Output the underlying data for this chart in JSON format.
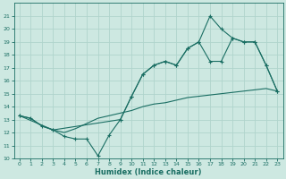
{
  "xlabel": "Humidex (Indice chaleur)",
  "bg_color": "#cde8e1",
  "grid_color": "#b0d4cc",
  "line_color": "#1a6e63",
  "xlim": [
    -0.5,
    23.5
  ],
  "ylim": [
    10,
    22
  ],
  "yticks": [
    10,
    11,
    12,
    13,
    14,
    15,
    16,
    17,
    18,
    19,
    20,
    21
  ],
  "xticks": [
    0,
    1,
    2,
    3,
    4,
    5,
    6,
    7,
    8,
    9,
    10,
    11,
    12,
    13,
    14,
    15,
    16,
    17,
    18,
    19,
    20,
    21,
    22,
    23
  ],
  "line1_x": [
    0,
    1,
    2,
    3,
    4,
    5,
    6,
    7,
    8,
    9,
    10,
    11,
    12,
    13,
    14,
    15,
    16,
    17,
    18,
    19,
    20,
    21,
    22,
    23
  ],
  "line1_y": [
    13.3,
    13.1,
    12.5,
    12.2,
    11.7,
    11.5,
    11.5,
    10.2,
    11.8,
    13.0,
    14.8,
    16.5,
    17.2,
    17.5,
    17.2,
    18.5,
    19.0,
    17.5,
    17.5,
    19.3,
    19.0,
    19.0,
    17.2,
    15.2
  ],
  "line2_x": [
    0,
    1,
    2,
    3,
    4,
    5,
    6,
    7,
    8,
    9,
    10,
    11,
    12,
    13,
    14,
    15,
    16,
    17,
    18,
    19,
    20,
    21,
    22,
    23
  ],
  "line2_y": [
    13.3,
    13.1,
    12.5,
    12.2,
    12.0,
    12.3,
    12.7,
    13.1,
    13.3,
    13.5,
    13.7,
    14.0,
    14.2,
    14.3,
    14.5,
    14.7,
    14.8,
    14.9,
    15.0,
    15.1,
    15.2,
    15.3,
    15.4,
    15.2
  ],
  "line3_x": [
    0,
    3,
    9,
    10,
    11,
    12,
    13,
    14,
    15,
    16,
    17,
    18,
    19,
    20,
    21,
    22,
    23
  ],
  "line3_y": [
    13.3,
    12.2,
    13.0,
    14.8,
    16.5,
    17.2,
    17.5,
    17.2,
    18.5,
    19.0,
    21.0,
    20.0,
    19.3,
    19.0,
    19.0,
    17.2,
    15.2
  ]
}
